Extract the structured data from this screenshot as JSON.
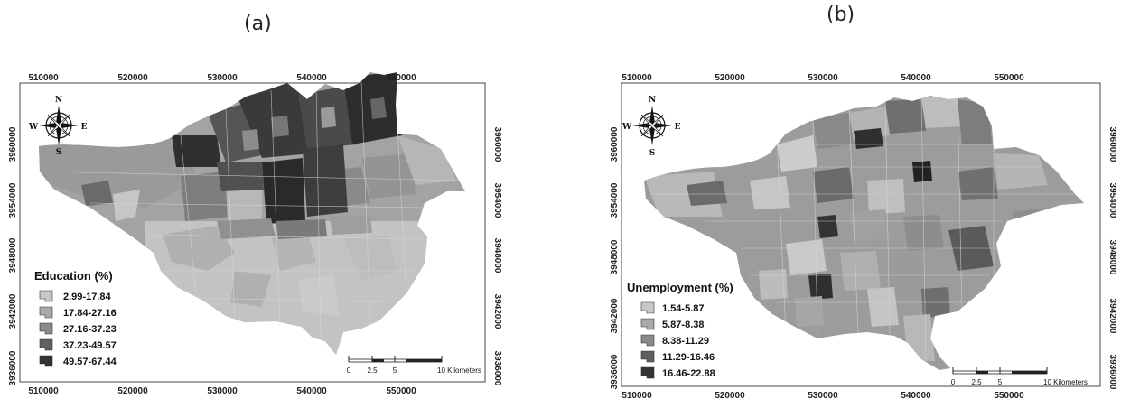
{
  "panels": [
    {
      "label": "(a)",
      "legend_title": "Education (%)",
      "classes": [
        "2.99-17.84",
        "17.84-27.16",
        "27.16-37.23",
        "37.23-49.57",
        "49.57-67.44"
      ],
      "class_colors": [
        "#c8c8c8",
        "#a9a9a9",
        "#8a8a8a",
        "#5f5f5f",
        "#333333"
      ],
      "x_ticks": [
        "510000",
        "520000",
        "530000",
        "540000",
        "550000"
      ],
      "y_ticks": [
        "3960000",
        "3954000",
        "3948000",
        "3942000",
        "3936000"
      ],
      "scale_ticks": [
        "0",
        "2.5",
        "5",
        "10 Kilometers"
      ],
      "compass": {
        "n": "N",
        "s": "S",
        "e": "E",
        "w": "W"
      }
    },
    {
      "label": "(b)",
      "legend_title": "Unemployment (%)",
      "classes": [
        "1.54-5.87",
        "5.87-8.38",
        "8.38-11.29",
        "11.29-16.46",
        "16.46-22.88"
      ],
      "class_colors": [
        "#c8c8c8",
        "#a9a9a9",
        "#8a8a8a",
        "#5f5f5f",
        "#333333"
      ],
      "x_ticks": [
        "510000",
        "520000",
        "530000",
        "540000",
        "550000"
      ],
      "y_ticks": [
        "3960000",
        "3954000",
        "3948000",
        "3942000",
        "3936000"
      ],
      "scale_ticks": [
        "0",
        "2.5",
        "5",
        "10 Kilometers"
      ],
      "compass": {
        "n": "N",
        "s": "S",
        "e": "E",
        "w": "W"
      }
    }
  ]
}
